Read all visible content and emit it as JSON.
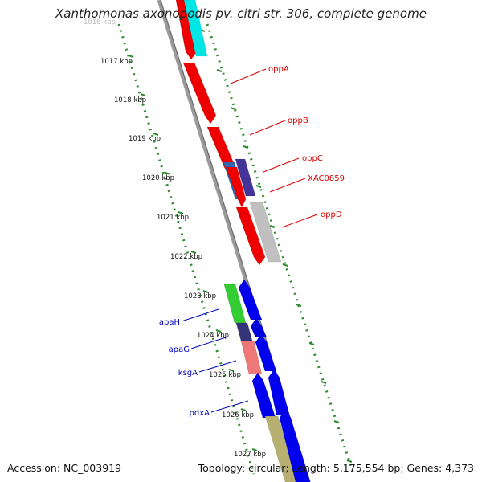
{
  "title": "Xanthomonas axonopodis pv. citri str. 306, complete genome",
  "footer": {
    "accession": "Accession: NC_003919",
    "topology": "Topology: circular; Length: 5,175,554 bp; Genes: 4,373"
  },
  "colors": {
    "backbone": "#8a8a8a",
    "tick_dots": "#2e8b2e",
    "forward_label": "#dd0000",
    "reverse_label": "#0000bb",
    "faded_label": "#bbbbbb"
  },
  "scale_labels": [
    {
      "text": "1016 kbp",
      "faded": true
    },
    {
      "text": "1017 kbp"
    },
    {
      "text": "1018 kbp"
    },
    {
      "text": "1019 kbp"
    },
    {
      "text": "1020 kbp"
    },
    {
      "text": "1021 kbp"
    },
    {
      "text": "1022 kbp"
    },
    {
      "text": "1023 kbp"
    },
    {
      "text": "1024 kbp"
    },
    {
      "text": "1025 kbp"
    },
    {
      "text": "1026 kbp"
    },
    {
      "text": "1027 kbp"
    }
  ],
  "gene_labels": [
    {
      "text": "oppA",
      "strand": "forward"
    },
    {
      "text": "oppB",
      "strand": "forward"
    },
    {
      "text": "oppC",
      "strand": "forward"
    },
    {
      "text": "XAC0859",
      "strand": "forward"
    },
    {
      "text": "oppD",
      "strand": "forward"
    },
    {
      "text": "apaH",
      "strand": "reverse"
    },
    {
      "text": "apaG",
      "strand": "reverse"
    },
    {
      "text": "ksgA",
      "strand": "reverse"
    },
    {
      "text": "pdxA",
      "strand": "reverse"
    }
  ]
}
